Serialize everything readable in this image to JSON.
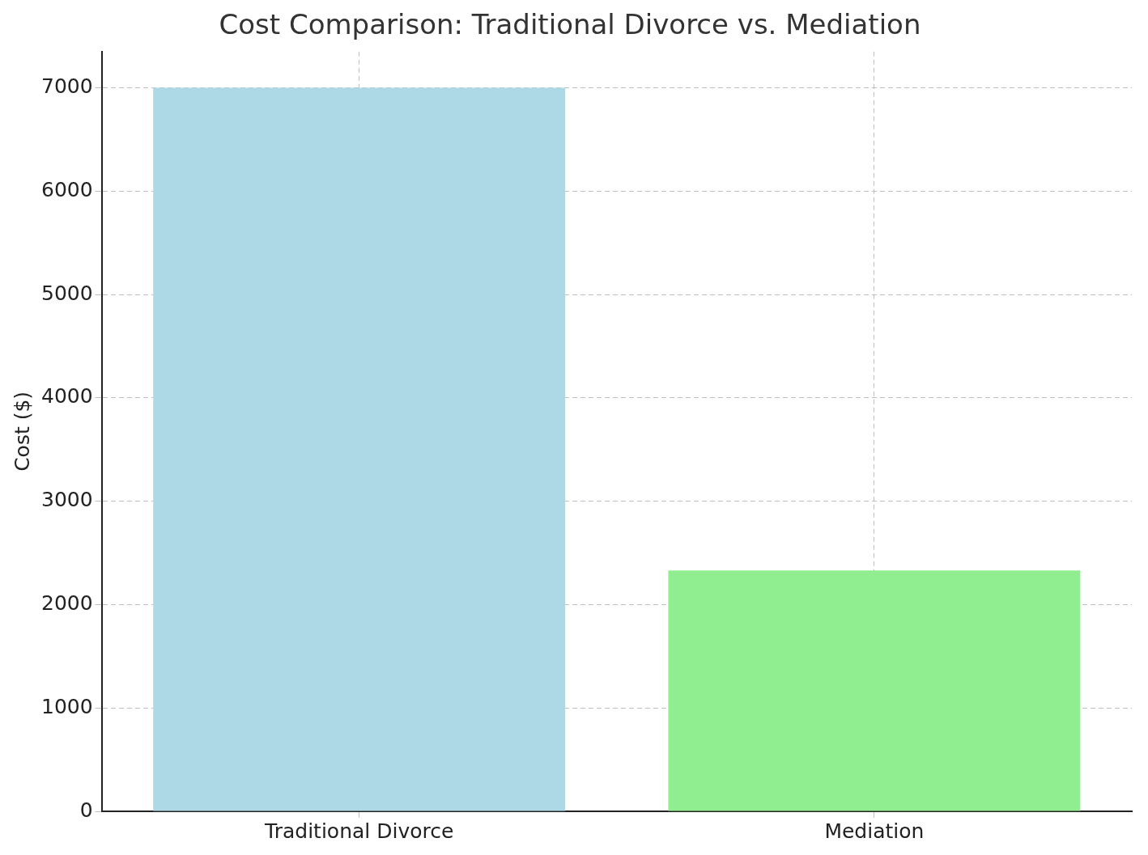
{
  "chart_data": {
    "type": "bar",
    "title": "Cost Comparison: Traditional Divorce vs. Mediation",
    "categories": [
      "Traditional Divorce",
      "Mediation"
    ],
    "values": [
      7000,
      2330
    ],
    "colors": [
      "#add8e6",
      "#90ee90"
    ],
    "y_label": "Cost ($)",
    "ylim": [
      0,
      7350
    ],
    "yticks": [
      0,
      1000,
      2000,
      3000,
      4000,
      5000,
      6000,
      7000
    ],
    "grid": true
  }
}
